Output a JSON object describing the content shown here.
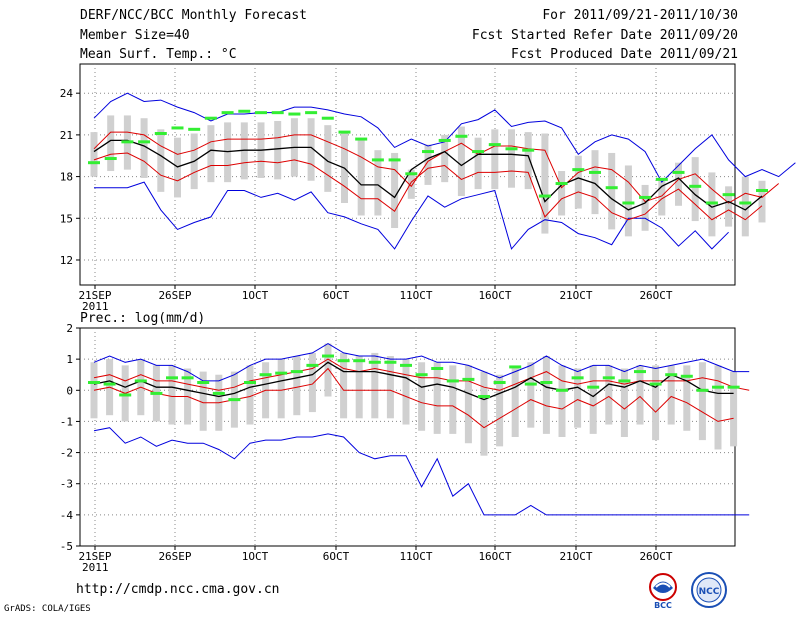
{
  "header": {
    "title": "DERF/NCC/BCC Monthly Forecast",
    "member_size": "Member Size=40",
    "variable": "Mean Surf. Temp.: °C",
    "period": "For 2011/09/21-2011/10/30",
    "refer_date": "Fcst Started Refer Date 2011/09/20",
    "produced_date": "Fcst Produced Date 2011/09/21"
  },
  "footer": {
    "url": "http://cmdp.ncc.cma.gov.cn",
    "grads": "GrADS: COLA/IGES",
    "logo_bcc": "BCC",
    "logo_ncc": "NCC"
  },
  "colors": {
    "envelope": "#0000dd",
    "spread": "#dd0000",
    "mean": "#000000",
    "obs": "#33ee33",
    "box": "#d0d0d0"
  },
  "chart_data": [
    {
      "type": "line",
      "title": "Mean Surf. Temp.: °C",
      "x_ticks": [
        "21SEP",
        "26SEP",
        "1OCT",
        "6OCT",
        "11OCT",
        "16OCT",
        "21OCT",
        "26OCT"
      ],
      "x_tick_year": "2011",
      "ylim": [
        10.2,
        26.1
      ],
      "yticks": [
        "12",
        "15",
        "18",
        "21",
        "24"
      ],
      "series": [
        {
          "name": "max",
          "values": [
            22.2,
            23.4,
            24,
            23.4,
            23.5,
            23,
            22.6,
            22,
            22.5,
            22.5,
            22.6,
            22.6,
            23,
            23,
            22.8,
            22.5,
            22.3,
            21.5,
            20.1,
            20.7,
            20.2,
            20.5,
            21.8,
            22.1,
            22.8,
            21.6,
            21.9,
            22,
            21.5,
            19.6,
            20.5,
            21,
            20.7,
            19.8,
            17.6,
            18.8,
            20,
            21,
            19.2,
            18,
            18.5,
            18,
            19
          ]
        },
        {
          "name": "upper",
          "values": [
            20,
            21.2,
            21.2,
            21,
            20.2,
            19.6,
            19.9,
            20.5,
            20.7,
            20.7,
            20.7,
            20.8,
            21,
            21,
            20.5,
            20,
            19.4,
            18.7,
            18.5,
            17.3,
            19.1,
            19.8,
            20.4,
            19.6,
            20.2,
            20.2,
            20,
            19.9,
            17.2,
            18.3,
            18.7,
            18.5,
            17.6,
            16.2,
            16.6,
            17.8,
            18.2,
            17.1,
            16.1,
            16.8,
            16.5,
            17.5
          ]
        },
        {
          "name": "mean",
          "values": [
            19.8,
            20.6,
            20.6,
            20.2,
            19.5,
            18.7,
            19.1,
            19.9,
            19.8,
            19.9,
            19.9,
            20,
            20.1,
            20.1,
            19.1,
            18.6,
            17.4,
            17.4,
            16.5,
            18.5,
            19.3,
            19.8,
            18.8,
            19.6,
            19.6,
            19.6,
            19.5,
            16.2,
            17.4,
            17.9,
            17.5,
            16.4,
            15.6,
            16.1,
            17.3,
            17.9,
            16.7,
            15.8,
            16.2,
            15.6,
            16.6
          ]
        },
        {
          "name": "lower",
          "values": [
            19.2,
            19.6,
            19.7,
            19.1,
            18.1,
            17.7,
            18.3,
            18.8,
            18.8,
            19,
            19.1,
            19,
            19.2,
            18.9,
            18.1,
            17.3,
            16.4,
            16.4,
            15.5,
            17.6,
            18.6,
            18.8,
            17.8,
            18.3,
            18.3,
            18.4,
            18.3,
            15.1,
            16.4,
            16.9,
            16.5,
            15.4,
            14.9,
            15.3,
            16.4,
            17.1,
            16,
            14.9,
            15.6,
            14.9,
            15.9
          ]
        },
        {
          "name": "min",
          "values": [
            17.2,
            17.2,
            17.2,
            17.6,
            15.6,
            14.2,
            14.7,
            15.1,
            17,
            17,
            16.5,
            16.8,
            16.3,
            16.9,
            15.4,
            15.1,
            14.6,
            14.2,
            12.8,
            14.8,
            16.6,
            15.8,
            16.4,
            16.7,
            17,
            12.8,
            14.2,
            14.9,
            14.7,
            13.9,
            13.6,
            13.1,
            15,
            15,
            14.3,
            13,
            14.1,
            12.8,
            14
          ]
        },
        {
          "name": "observed",
          "values": [
            19,
            19.3,
            20.5,
            20.5,
            21.1,
            21.5,
            21.4,
            22.2,
            22.6,
            22.7,
            22.6,
            22.6,
            22.5,
            22.6,
            22.2,
            21.2,
            20.7,
            19.2,
            19.2,
            18.2,
            19.8,
            20.6,
            20.9,
            19.8,
            20.3,
            20,
            19.9,
            16.6,
            17.5,
            18.5,
            18.3,
            17.2,
            16.1,
            16.5,
            17.8,
            18.3,
            17.3,
            16.1,
            16.7,
            16.1,
            17
          ]
        }
      ]
    },
    {
      "type": "line",
      "title": "Prec.: log(mm/d)",
      "x_ticks": [
        "21SEP",
        "26SEP",
        "1OCT",
        "6OCT",
        "11OCT",
        "16OCT",
        "21OCT",
        "26OCT"
      ],
      "x_tick_year": "2011",
      "ylim": [
        -5,
        2
      ],
      "yticks": [
        "2",
        "1",
        "0",
        "-1",
        "-2",
        "-3",
        "-4",
        "-5"
      ],
      "series": [
        {
          "name": "max",
          "values": [
            0.9,
            1.1,
            0.9,
            1,
            0.8,
            0.8,
            0.6,
            0.3,
            0.3,
            0.5,
            0.8,
            1,
            1,
            1.1,
            1.2,
            1.5,
            1.2,
            1.1,
            1.1,
            1,
            1,
            1.1,
            0.9,
            0.9,
            0.8,
            0.6,
            0.4,
            0.6,
            0.8,
            1.1,
            0.8,
            0.6,
            0.8,
            0.8,
            0.6,
            0.8,
            0.7,
            0.8,
            0.9,
            1,
            0.8,
            0.6,
            0.6
          ]
        },
        {
          "name": "upper",
          "values": [
            0.4,
            0.5,
            0.3,
            0.5,
            0.3,
            0.3,
            0.2,
            0.1,
            0,
            0.1,
            0.3,
            0.4,
            0.5,
            0.6,
            0.7,
            1,
            0.7,
            0.6,
            0.7,
            0.6,
            0.5,
            0.4,
            0.4,
            0.3,
            0.3,
            0.1,
            0,
            0.2,
            0.4,
            0.6,
            0.3,
            0.2,
            0.3,
            0.3,
            0.2,
            0.3,
            0.3,
            0.3,
            0.3,
            0.4,
            0.3,
            0.1,
            0
          ]
        },
        {
          "name": "mean",
          "values": [
            0.2,
            0.3,
            0.1,
            0.3,
            0.1,
            0.1,
            0,
            -0.1,
            -0.2,
            -0.1,
            0.1,
            0.2,
            0.3,
            0.4,
            0.5,
            0.9,
            0.6,
            0.6,
            0.6,
            0.5,
            0.4,
            0.1,
            0.2,
            0.1,
            -0.1,
            -0.3,
            -0.1,
            0.1,
            0.4,
            0.1,
            0,
            0.1,
            -0.2,
            0.2,
            0.1,
            0.3,
            0.1,
            0.5,
            0.3,
            0,
            -0.1,
            -0.1
          ]
        },
        {
          "name": "lower",
          "values": [
            0,
            0.1,
            -0.1,
            0.1,
            -0.1,
            -0.2,
            -0.2,
            -0.4,
            -0.4,
            -0.3,
            -0.2,
            0,
            0,
            0.1,
            0.2,
            0.7,
            0,
            0,
            0,
            0,
            -0.2,
            -0.4,
            -0.5,
            -0.5,
            -0.8,
            -1.2,
            -0.9,
            -0.6,
            -0.3,
            -0.5,
            -0.6,
            -0.3,
            -0.5,
            -0.2,
            -0.6,
            -0.2,
            -0.7,
            -0.2,
            -0.4,
            -0.7,
            -1,
            -0.9
          ]
        },
        {
          "name": "min",
          "values": [
            -1.3,
            -1.2,
            -1.7,
            -1.5,
            -1.8,
            -1.6,
            -1.7,
            -1.7,
            -1.9,
            -2.2,
            -1.7,
            -1.6,
            -1.6,
            -1.5,
            -1.5,
            -1.4,
            -1.5,
            -2,
            -2.2,
            -2.1,
            -2.1,
            -3.1,
            -2.2,
            -3.4,
            -3,
            -4,
            -4,
            -4,
            -3.7,
            -4,
            -4,
            -4,
            -4,
            -4,
            -4,
            -4,
            -4,
            -4,
            -4,
            -4,
            -4,
            -4,
            -4
          ]
        },
        {
          "name": "observed",
          "values": [
            0.25,
            0.2,
            -0.15,
            0.3,
            -0.1,
            0.4,
            0.4,
            0.25,
            -0.1,
            -0.3,
            0.25,
            0.5,
            0.55,
            0.6,
            0.8,
            1.1,
            0.95,
            0.95,
            0.9,
            0.9,
            0.8,
            0.5,
            0.7,
            0.3,
            0.35,
            -0.2,
            0.25,
            0.75,
            0.2,
            0.25,
            0,
            0.4,
            0.1,
            0.4,
            0.3,
            0.6,
            0.2,
            0.5,
            0.45,
            0,
            0.1,
            0.1
          ]
        }
      ]
    }
  ]
}
